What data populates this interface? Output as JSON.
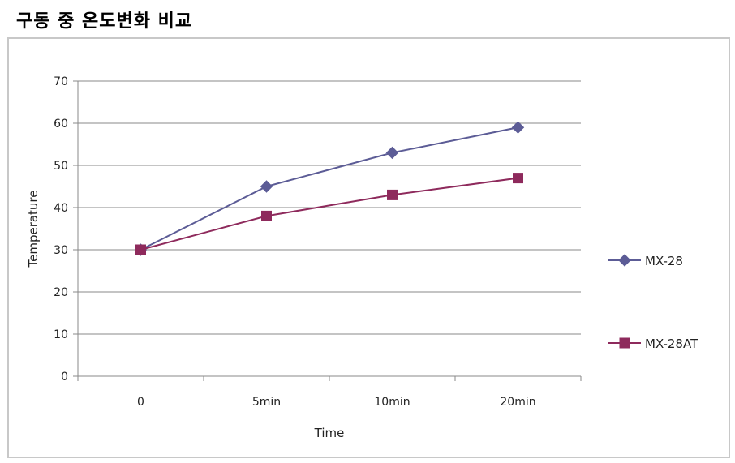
{
  "page": {
    "title": "구동 중 온도변화 비교"
  },
  "chart_data": {
    "type": "line",
    "title": "구동 중 온도변화 비교",
    "xlabel": "Time",
    "ylabel": "Temperature",
    "categories": [
      "0",
      "5min",
      "10min",
      "20min"
    ],
    "ylim": [
      0,
      70
    ],
    "yticks": [
      0,
      10,
      20,
      30,
      40,
      50,
      60,
      70
    ],
    "grid": true,
    "legend": "right",
    "series": [
      {
        "name": "MX-28",
        "values": [
          30,
          45,
          53,
          59
        ],
        "color": "#5c5c96",
        "marker": "diamond"
      },
      {
        "name": "MX-28AT",
        "values": [
          30,
          38,
          43,
          47
        ],
        "color": "#8e2a5c",
        "marker": "square"
      }
    ]
  }
}
